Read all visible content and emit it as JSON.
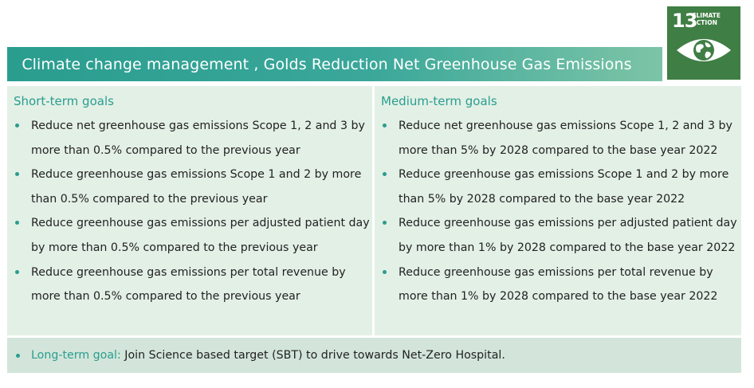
{
  "header": {
    "title": "Climate change management , Golds Reduction Net Greenhouse Gas Emissions"
  },
  "sdg_badge": {
    "number": "13",
    "label_line1": "CLIMATE",
    "label_line2": "ACTION",
    "icon": "eye-globe-icon",
    "color": "#3f7e44"
  },
  "short_term": {
    "heading": "Short-term goals",
    "items": [
      "Reduce net greenhouse gas emissions Scope 1, 2 and 3 by more than 0.5%  compared to the previous year",
      "Reduce greenhouse gas emissions Scope 1 and 2 by more than 0.5% compared to the previous year",
      "Reduce greenhouse gas emissions per adjusted patient day by more than 0.5% compared to the previous year",
      "Reduce greenhouse gas emissions per total revenue by more than 0.5%  compared to the previous year"
    ]
  },
  "medium_term": {
    "heading": "Medium-term goals",
    "items": [
      "Reduce net greenhouse gas emissions Scope 1, 2 and 3 by more than 5% by 2028  compared to the base year 2022",
      "Reduce greenhouse gas emissions Scope 1 and 2 by more than 5% by 2028 compared to the base year 2022",
      "Reduce greenhouse gas emissions per adjusted patient day by more than 1% by 2028  compared to the base year 2022",
      "Reduce greenhouse gas emissions per total revenue by more than 1% by 2028  compared to the base year 2022"
    ]
  },
  "long_term": {
    "label": "Long-term goal:",
    "text": " Join Science based target (SBT) to drive towards Net-Zero Hospital."
  },
  "colors": {
    "accent": "#2a9d8f",
    "panel_bg": "#e3f0e6",
    "footer_bg": "#d3e5da"
  }
}
